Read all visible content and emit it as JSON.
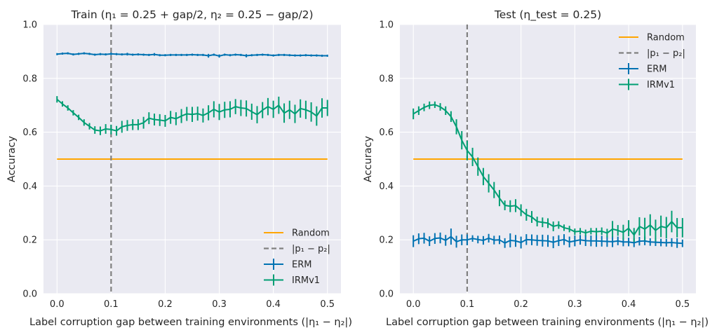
{
  "figure": {
    "background": "#ffffff",
    "plot_background": "#eaeaf2",
    "grid_color": "#ffffff",
    "colors": {
      "random": "#ffa500",
      "gap": "#808080",
      "erm": "#0072b2",
      "irm": "#009e73"
    }
  },
  "chart_data": [
    {
      "type": "line",
      "title": "Train (η₁ = 0.25 + gap/2, η₂ = 0.25 − gap/2)",
      "xlabel": "Label corruption gap between training environments (|η₁ − η₂|)",
      "ylabel": "Accuracy",
      "xlim": [
        -0.025,
        0.525
      ],
      "ylim": [
        0.0,
        1.0
      ],
      "xticks": [
        "0.0",
        "0.1",
        "0.2",
        "0.3",
        "0.4",
        "0.5"
      ],
      "yticks": [
        "0.0",
        "0.2",
        "0.4",
        "0.6",
        "0.8",
        "1.0"
      ],
      "grid": true,
      "legend_position": "lower-right",
      "legend": [
        "Random",
        "|p₁ − p₂|",
        "ERM",
        "IRMv1"
      ],
      "vline": {
        "x": 0.1,
        "label": "|p₁ − p₂|",
        "style": "dashed"
      },
      "series": [
        {
          "name": "Random",
          "color": "#ffa500",
          "x": [
            0.0,
            0.5
          ],
          "y": [
            0.5,
            0.5
          ]
        },
        {
          "name": "ERM",
          "color": "#0072b2",
          "x": [
            0.0,
            0.01,
            0.02,
            0.03,
            0.04,
            0.05,
            0.06,
            0.07,
            0.08,
            0.09,
            0.1,
            0.11,
            0.12,
            0.13,
            0.14,
            0.15,
            0.16,
            0.17,
            0.18,
            0.19,
            0.2,
            0.21,
            0.22,
            0.23,
            0.24,
            0.25,
            0.26,
            0.27,
            0.28,
            0.29,
            0.3,
            0.31,
            0.32,
            0.33,
            0.34,
            0.35,
            0.36,
            0.37,
            0.38,
            0.39,
            0.4,
            0.41,
            0.42,
            0.43,
            0.44,
            0.45,
            0.46,
            0.47,
            0.48,
            0.49,
            0.5
          ],
          "y": [
            0.89,
            0.892,
            0.893,
            0.889,
            0.891,
            0.893,
            0.891,
            0.888,
            0.89,
            0.889,
            0.891,
            0.89,
            0.889,
            0.89,
            0.888,
            0.889,
            0.888,
            0.887,
            0.889,
            0.886,
            0.886,
            0.887,
            0.887,
            0.887,
            0.887,
            0.888,
            0.887,
            0.887,
            0.884,
            0.888,
            0.883,
            0.888,
            0.886,
            0.888,
            0.887,
            0.884,
            0.886,
            0.887,
            0.888,
            0.887,
            0.885,
            0.887,
            0.887,
            0.886,
            0.885,
            0.885,
            0.886,
            0.885,
            0.885,
            0.884,
            0.884
          ],
          "err": [
            0.004,
            0.004,
            0.004,
            0.004,
            0.004,
            0.004,
            0.004,
            0.004,
            0.004,
            0.004,
            0.005,
            0.004,
            0.004,
            0.005,
            0.004,
            0.004,
            0.004,
            0.004,
            0.005,
            0.004,
            0.004,
            0.004,
            0.004,
            0.004,
            0.004,
            0.004,
            0.004,
            0.004,
            0.007,
            0.004,
            0.006,
            0.004,
            0.004,
            0.004,
            0.004,
            0.006,
            0.004,
            0.004,
            0.004,
            0.004,
            0.004,
            0.004,
            0.004,
            0.004,
            0.004,
            0.004,
            0.004,
            0.004,
            0.004,
            0.004,
            0.004
          ]
        },
        {
          "name": "IRMv1",
          "color": "#009e73",
          "x": [
            0.0,
            0.01,
            0.02,
            0.03,
            0.04,
            0.05,
            0.06,
            0.07,
            0.08,
            0.09,
            0.1,
            0.11,
            0.12,
            0.13,
            0.14,
            0.15,
            0.16,
            0.17,
            0.18,
            0.19,
            0.2,
            0.21,
            0.22,
            0.23,
            0.24,
            0.25,
            0.26,
            0.27,
            0.28,
            0.29,
            0.3,
            0.31,
            0.32,
            0.33,
            0.34,
            0.35,
            0.36,
            0.37,
            0.38,
            0.39,
            0.4,
            0.41,
            0.42,
            0.43,
            0.44,
            0.45,
            0.46,
            0.47,
            0.48,
            0.49,
            0.5
          ],
          "y": [
            0.722,
            0.705,
            0.69,
            0.672,
            0.655,
            0.636,
            0.622,
            0.608,
            0.605,
            0.612,
            0.61,
            0.605,
            0.62,
            0.625,
            0.628,
            0.628,
            0.635,
            0.652,
            0.647,
            0.645,
            0.642,
            0.655,
            0.65,
            0.66,
            0.668,
            0.666,
            0.669,
            0.662,
            0.672,
            0.685,
            0.675,
            0.683,
            0.685,
            0.695,
            0.69,
            0.688,
            0.676,
            0.665,
            0.682,
            0.695,
            0.685,
            0.7,
            0.671,
            0.683,
            0.668,
            0.688,
            0.683,
            0.675,
            0.66,
            0.69,
            0.69
          ],
          "err": [
            0.012,
            0.01,
            0.01,
            0.01,
            0.01,
            0.012,
            0.012,
            0.014,
            0.016,
            0.018,
            0.018,
            0.018,
            0.022,
            0.02,
            0.02,
            0.02,
            0.022,
            0.022,
            0.022,
            0.022,
            0.022,
            0.024,
            0.024,
            0.026,
            0.026,
            0.028,
            0.026,
            0.026,
            0.028,
            0.03,
            0.03,
            0.03,
            0.03,
            0.028,
            0.03,
            0.03,
            0.03,
            0.032,
            0.03,
            0.032,
            0.032,
            0.032,
            0.036,
            0.034,
            0.034,
            0.034,
            0.034,
            0.036,
            0.036,
            0.036,
            0.03
          ]
        }
      ]
    },
    {
      "type": "line",
      "title": "Test (η_test = 0.25)",
      "xlabel": "Label corruption gap between training environments (|η₁ − η₂|)",
      "ylabel": "Accuracy",
      "xlim": [
        -0.025,
        0.525
      ],
      "ylim": [
        0.0,
        1.0
      ],
      "xticks": [
        "0.0",
        "0.1",
        "0.2",
        "0.3",
        "0.4",
        "0.5"
      ],
      "yticks": [
        "0.0",
        "0.2",
        "0.4",
        "0.6",
        "0.8",
        "1.0"
      ],
      "grid": true,
      "legend_position": "upper-right",
      "legend": [
        "Random",
        "|p₁ − p₂|",
        "ERM",
        "IRMv1"
      ],
      "vline": {
        "x": 0.1,
        "label": "|p₁ − p₂|",
        "style": "dashed"
      },
      "series": [
        {
          "name": "Random",
          "color": "#ffa500",
          "x": [
            0.0,
            0.5
          ],
          "y": [
            0.5,
            0.5
          ]
        },
        {
          "name": "ERM",
          "color": "#0072b2",
          "x": [
            0.0,
            0.01,
            0.02,
            0.03,
            0.04,
            0.05,
            0.06,
            0.07,
            0.08,
            0.09,
            0.1,
            0.11,
            0.12,
            0.13,
            0.14,
            0.15,
            0.16,
            0.17,
            0.18,
            0.19,
            0.2,
            0.21,
            0.22,
            0.23,
            0.24,
            0.25,
            0.26,
            0.27,
            0.28,
            0.29,
            0.3,
            0.31,
            0.32,
            0.33,
            0.34,
            0.35,
            0.36,
            0.37,
            0.38,
            0.39,
            0.4,
            0.41,
            0.42,
            0.43,
            0.44,
            0.45,
            0.46,
            0.47,
            0.48,
            0.49,
            0.5
          ],
          "y": [
            0.195,
            0.204,
            0.206,
            0.195,
            0.205,
            0.207,
            0.198,
            0.212,
            0.193,
            0.2,
            0.2,
            0.205,
            0.201,
            0.198,
            0.206,
            0.199,
            0.2,
            0.188,
            0.198,
            0.196,
            0.19,
            0.201,
            0.2,
            0.198,
            0.197,
            0.196,
            0.191,
            0.197,
            0.201,
            0.192,
            0.196,
            0.2,
            0.197,
            0.196,
            0.196,
            0.195,
            0.194,
            0.193,
            0.196,
            0.192,
            0.192,
            0.189,
            0.195,
            0.196,
            0.192,
            0.191,
            0.19,
            0.189,
            0.19,
            0.188,
            0.187
          ],
          "err": [
            0.022,
            0.02,
            0.02,
            0.018,
            0.02,
            0.02,
            0.02,
            0.03,
            0.022,
            0.02,
            0.02,
            0.012,
            0.014,
            0.016,
            0.016,
            0.016,
            0.016,
            0.018,
            0.026,
            0.022,
            0.022,
            0.02,
            0.02,
            0.02,
            0.022,
            0.022,
            0.022,
            0.02,
            0.02,
            0.02,
            0.02,
            0.018,
            0.02,
            0.02,
            0.022,
            0.02,
            0.02,
            0.02,
            0.016,
            0.016,
            0.016,
            0.016,
            0.016,
            0.016,
            0.014,
            0.014,
            0.014,
            0.014,
            0.016,
            0.018,
            0.014
          ]
        },
        {
          "name": "IRMv1",
          "color": "#009e73",
          "x": [
            0.0,
            0.01,
            0.02,
            0.03,
            0.04,
            0.05,
            0.06,
            0.07,
            0.08,
            0.09,
            0.1,
            0.11,
            0.12,
            0.13,
            0.14,
            0.15,
            0.16,
            0.17,
            0.18,
            0.19,
            0.2,
            0.21,
            0.22,
            0.23,
            0.24,
            0.25,
            0.26,
            0.27,
            0.28,
            0.29,
            0.3,
            0.31,
            0.32,
            0.33,
            0.34,
            0.35,
            0.36,
            0.37,
            0.38,
            0.39,
            0.4,
            0.41,
            0.42,
            0.43,
            0.44,
            0.45,
            0.46,
            0.47,
            0.48,
            0.49,
            0.5
          ],
          "y": [
            0.668,
            0.68,
            0.692,
            0.7,
            0.702,
            0.694,
            0.68,
            0.658,
            0.62,
            0.57,
            0.532,
            0.508,
            0.472,
            0.435,
            0.41,
            0.385,
            0.355,
            0.328,
            0.325,
            0.327,
            0.31,
            0.293,
            0.285,
            0.268,
            0.265,
            0.262,
            0.25,
            0.255,
            0.245,
            0.24,
            0.23,
            0.232,
            0.226,
            0.232,
            0.23,
            0.232,
            0.225,
            0.24,
            0.235,
            0.228,
            0.243,
            0.218,
            0.25,
            0.24,
            0.255,
            0.235,
            0.25,
            0.245,
            0.268,
            0.245,
            0.245
          ],
          "err": [
            0.02,
            0.016,
            0.014,
            0.014,
            0.012,
            0.014,
            0.016,
            0.02,
            0.028,
            0.034,
            0.036,
            0.034,
            0.034,
            0.032,
            0.034,
            0.03,
            0.03,
            0.018,
            0.022,
            0.024,
            0.022,
            0.022,
            0.022,
            0.018,
            0.018,
            0.018,
            0.018,
            0.014,
            0.012,
            0.012,
            0.012,
            0.012,
            0.012,
            0.012,
            0.014,
            0.014,
            0.016,
            0.03,
            0.02,
            0.028,
            0.03,
            0.026,
            0.034,
            0.042,
            0.04,
            0.04,
            0.04,
            0.04,
            0.04,
            0.036,
            0.036
          ]
        }
      ]
    }
  ]
}
